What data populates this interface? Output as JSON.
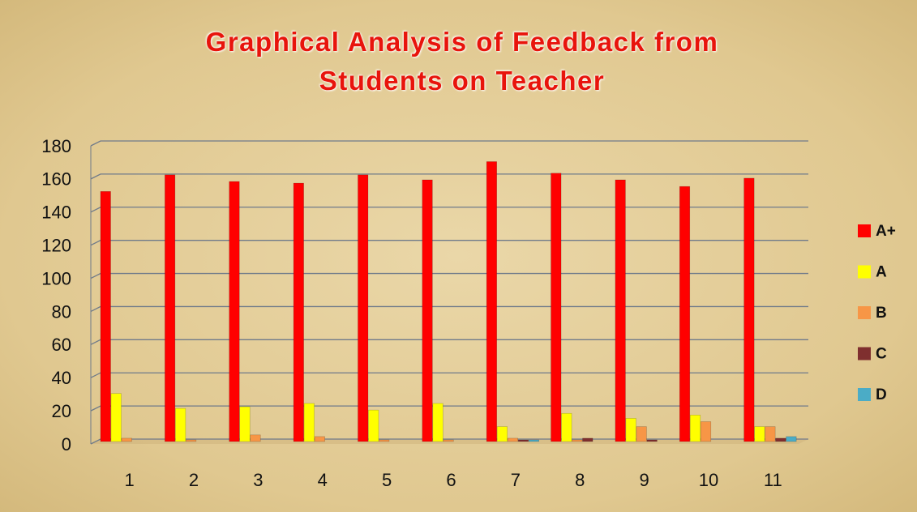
{
  "chart_data": {
    "type": "bar",
    "title": "Graphical Analysis of Feedback from Students on Teacher",
    "categories": [
      "1",
      "2",
      "3",
      "4",
      "5",
      "6",
      "7",
      "8",
      "9",
      "10",
      "11"
    ],
    "series": [
      {
        "name": "A+",
        "color": "#ff0000",
        "values": [
          151,
          161,
          157,
          156,
          161,
          158,
          169,
          162,
          158,
          154,
          159
        ]
      },
      {
        "name": "A",
        "color": "#ffff00",
        "values": [
          29,
          20,
          21,
          23,
          19,
          23,
          9,
          17,
          14,
          16,
          9
        ]
      },
      {
        "name": "B",
        "color": "#f79646",
        "values": [
          2,
          1,
          4,
          3,
          1,
          1,
          2,
          1,
          9,
          12,
          9
        ]
      },
      {
        "name": "C",
        "color": "#7f2f2f",
        "values": [
          0,
          0,
          0,
          0,
          0,
          0,
          1,
          2,
          1,
          0,
          2
        ]
      },
      {
        "name": "D",
        "color": "#4bacc6",
        "values": [
          0,
          0,
          0,
          0,
          0,
          0,
          1,
          0,
          0,
          0,
          3
        ]
      }
    ],
    "ylim": [
      0,
      180
    ],
    "yticks": [
      0,
      20,
      40,
      60,
      80,
      100,
      120,
      140,
      160,
      180
    ],
    "grid": true,
    "legend": "right"
  }
}
